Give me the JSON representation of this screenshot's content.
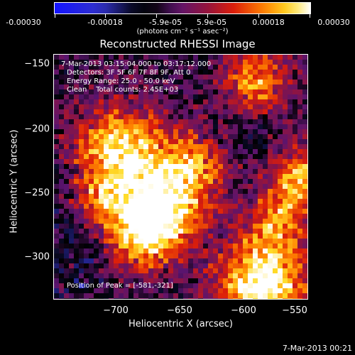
{
  "colorbar": {
    "ticks": [
      "-0.00030",
      "-0.00018",
      "-5.9e-05",
      "5.9e-05",
      "0.00018",
      "0.00030"
    ],
    "units": "(photons cm⁻² s⁻¹ asec⁻²)"
  },
  "plot": {
    "title": "Reconstructed RHESSI Image",
    "annotation_lines": [
      "7-Mar-2013 03:15:04.000 to 03:17:12.000",
      "Detectors: 3F 5F 6F 7F 8F 9F, Att 0",
      "Energy Range: 25.0 - 50.0 keV",
      "Clean    Total counts: 2.45E+03"
    ],
    "peak_text": "Position of Peak = [-581,-321]",
    "xlabel": "Heliocentric X (arcsec)",
    "ylabel": "Heliocentric Y (arcsec)",
    "xticks": [
      "−700",
      "−650",
      "−600",
      "−550"
    ],
    "yticks": [
      "−150",
      "−200",
      "−250",
      "−300"
    ]
  },
  "footer": {
    "date": "7-Mar-2013 00:21"
  },
  "colors": {
    "background": "#000000",
    "foreground": "#ffffff"
  }
}
